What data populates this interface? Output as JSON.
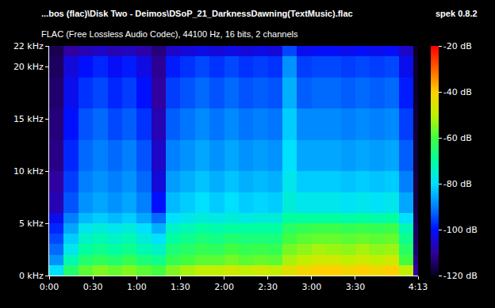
{
  "chart_data": {
    "type": "heatmap",
    "title": "...bos (flac)\\Disk Two - Deimos\\DSoP_21_DarknessDawning(TextMusic).flac",
    "subtitle": "FLAC (Free Lossless Audio Codec), 44100 Hz, 16 bits, 2 channels",
    "annotations": [
      "spek 0.8.2"
    ],
    "x_bins": [
      0,
      10,
      20,
      30,
      40,
      50,
      60,
      70,
      80,
      90,
      100,
      110,
      120,
      130,
      140,
      150,
      160,
      170,
      180,
      190,
      200,
      210,
      220,
      230,
      240,
      250,
      253
    ],
    "y_bins": [
      0,
      1,
      2,
      3,
      4,
      5,
      6,
      8,
      10,
      13,
      16,
      19,
      21,
      22
    ],
    "cells": [
      [
        -80,
        -65,
        -58,
        -55,
        -57,
        -55,
        -58,
        -60,
        -55,
        -52,
        -50,
        -50,
        -48,
        -50,
        -48,
        -50,
        -45,
        -42,
        -40,
        -40,
        -42,
        -40,
        -42,
        -40,
        -50,
        -110
      ],
      [
        -88,
        -72,
        -65,
        -63,
        -65,
        -62,
        -66,
        -68,
        -62,
        -60,
        -58,
        -58,
        -56,
        -58,
        -57,
        -58,
        -52,
        -50,
        -48,
        -48,
        -50,
        -48,
        -50,
        -48,
        -60,
        -112
      ],
      [
        -92,
        -78,
        -70,
        -68,
        -70,
        -68,
        -72,
        -74,
        -66,
        -64,
        -62,
        -63,
        -60,
        -62,
        -61,
        -62,
        -56,
        -54,
        -52,
        -53,
        -54,
        -52,
        -54,
        -53,
        -64,
        -114
      ],
      [
        -95,
        -82,
        -74,
        -72,
        -74,
        -72,
        -76,
        -80,
        -70,
        -68,
        -66,
        -67,
        -65,
        -66,
        -66,
        -66,
        -60,
        -58,
        -57,
        -57,
        -58,
        -57,
        -58,
        -57,
        -68,
        -115
      ],
      [
        -98,
        -86,
        -78,
        -76,
        -78,
        -76,
        -80,
        -85,
        -74,
        -72,
        -70,
        -71,
        -70,
        -70,
        -70,
        -70,
        -64,
        -62,
        -61,
        -61,
        -62,
        -61,
        -62,
        -61,
        -72,
        -115
      ],
      [
        -102,
        -90,
        -84,
        -82,
        -84,
        -82,
        -86,
        -92,
        -80,
        -78,
        -76,
        -77,
        -76,
        -77,
        -76,
        -76,
        -70,
        -70,
        -70,
        -70,
        -71,
        -70,
        -71,
        -70,
        -80,
        -116
      ],
      [
        -108,
        -94,
        -88,
        -86,
        -88,
        -86,
        -90,
        -100,
        -84,
        -82,
        -80,
        -82,
        -80,
        -82,
        -81,
        -82,
        -76,
        -78,
        -78,
        -78,
        -79,
        -78,
        -79,
        -78,
        -86,
        -117
      ],
      [
        -110,
        -96,
        -90,
        -88,
        -90,
        -88,
        -92,
        -104,
        -87,
        -85,
        -83,
        -85,
        -83,
        -85,
        -84,
        -85,
        -78,
        -82,
        -82,
        -82,
        -83,
        -82,
        -83,
        -82,
        -90,
        -117
      ],
      [
        -112,
        -98,
        -92,
        -90,
        -92,
        -90,
        -94,
        -106,
        -90,
        -88,
        -86,
        -88,
        -86,
        -88,
        -87,
        -88,
        -80,
        -86,
        -86,
        -86,
        -87,
        -86,
        -87,
        -86,
        -93,
        -118
      ],
      [
        -113,
        -100,
        -94,
        -92,
        -95,
        -93,
        -97,
        -108,
        -93,
        -91,
        -89,
        -91,
        -89,
        -91,
        -90,
        -91,
        -82,
        -89,
        -89,
        -89,
        -90,
        -89,
        -90,
        -89,
        -96,
        -118
      ],
      [
        -114,
        -102,
        -97,
        -95,
        -98,
        -96,
        -100,
        -110,
        -96,
        -94,
        -92,
        -94,
        -92,
        -94,
        -93,
        -94,
        -85,
        -93,
        -92,
        -92,
        -93,
        -92,
        -93,
        -92,
        -99,
        -119
      ],
      [
        -115,
        -104,
        -100,
        -98,
        -101,
        -99,
        -103,
        -111,
        -99,
        -97,
        -95,
        -97,
        -95,
        -97,
        -96,
        -97,
        -88,
        -96,
        -95,
        -95,
        -96,
        -95,
        -96,
        -95,
        -102,
        -119
      ],
      [
        -116,
        -110,
        -108,
        -106,
        -108,
        -107,
        -109,
        -113,
        -106,
        -104,
        -103,
        -104,
        -103,
        -104,
        -103,
        -104,
        -95,
        -102,
        -101,
        -101,
        -102,
        -101,
        -102,
        -101,
        -106,
        -120
      ]
    ],
    "xlim": [
      0,
      253
    ],
    "xticks": [
      {
        "value": 0,
        "label": "0:00"
      },
      {
        "value": 30,
        "label": "0:30"
      },
      {
        "value": 60,
        "label": "1:00"
      },
      {
        "value": 90,
        "label": "1:30"
      },
      {
        "value": 120,
        "label": "2:00"
      },
      {
        "value": 150,
        "label": "2:30"
      },
      {
        "value": 180,
        "label": "3:00"
      },
      {
        "value": 210,
        "label": "3:30"
      },
      {
        "value": 253,
        "label": "4:13"
      }
    ],
    "ylim": [
      0,
      22
    ],
    "yticks": [
      {
        "value": 0,
        "label": "0 kHz"
      },
      {
        "value": 5,
        "label": "5 kHz"
      },
      {
        "value": 10,
        "label": "10 kHz"
      },
      {
        "value": 15,
        "label": "15 kHz"
      },
      {
        "value": 20,
        "label": "20 kHz"
      },
      {
        "value": 22,
        "label": "22 kHz"
      }
    ],
    "colorbar_range": [
      -120,
      -20
    ],
    "colorbar_ticks": [
      {
        "value": -20,
        "label": "-20 dB"
      },
      {
        "value": -40,
        "label": "-40 dB"
      },
      {
        "value": -60,
        "label": "-60 dB"
      },
      {
        "value": -80,
        "label": "-80 dB"
      },
      {
        "value": -100,
        "label": "-100 dB"
      },
      {
        "value": -120,
        "label": "-120 dB"
      }
    ],
    "grid": false
  }
}
